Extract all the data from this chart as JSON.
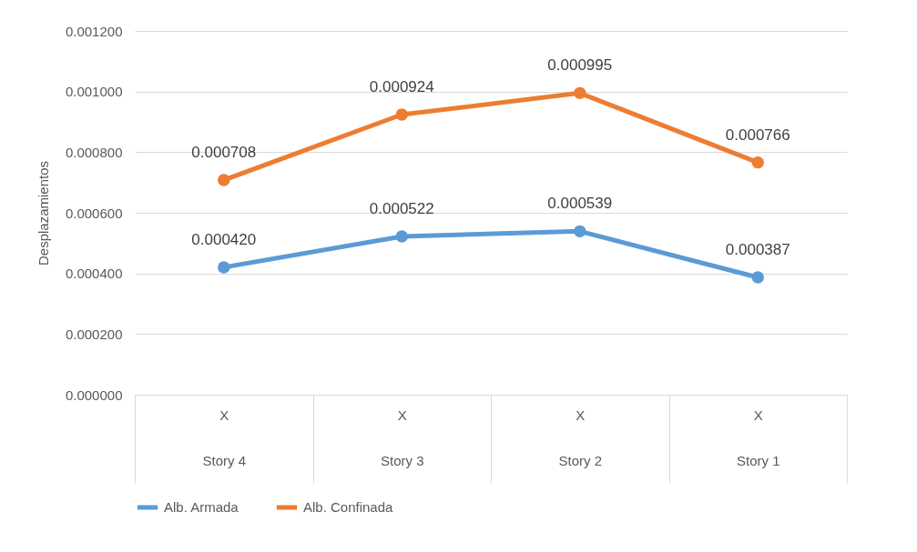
{
  "chart_data": {
    "type": "line",
    "ylabel": "Desplazamientos",
    "categories": [
      "X\nStory 4",
      "X\nStory 3",
      "X\nStory 2",
      "X\nStory 1"
    ],
    "series": [
      {
        "name": "Alb. Armada",
        "color": "#5b9bd5",
        "values": [
          0.00042,
          0.000522,
          0.000539,
          0.000387
        ],
        "value_labels": [
          "0.000420",
          "0.000522",
          "0.000539",
          "0.000387"
        ]
      },
      {
        "name": "Alb. Confinada",
        "color": "#ed7d31",
        "values": [
          0.000708,
          0.000924,
          0.000995,
          0.000766
        ],
        "value_labels": [
          "0.000708",
          "0.000924",
          "0.000995",
          "0.000766"
        ]
      }
    ],
    "ylim": [
      0,
      0.0012
    ],
    "yticks": [
      {
        "value": 0,
        "label": "0.000000"
      },
      {
        "value": 0.0002,
        "label": "0.000200"
      },
      {
        "value": 0.0004,
        "label": "0.000400"
      },
      {
        "value": 0.0006,
        "label": "0.000600"
      },
      {
        "value": 0.0008,
        "label": "0.000800"
      },
      {
        "value": 0.001,
        "label": "0.001000"
      },
      {
        "value": 0.0012,
        "label": "0.001200"
      }
    ],
    "grid": "y",
    "legend": "bottom",
    "marker": "circle",
    "line_style": "solid"
  }
}
